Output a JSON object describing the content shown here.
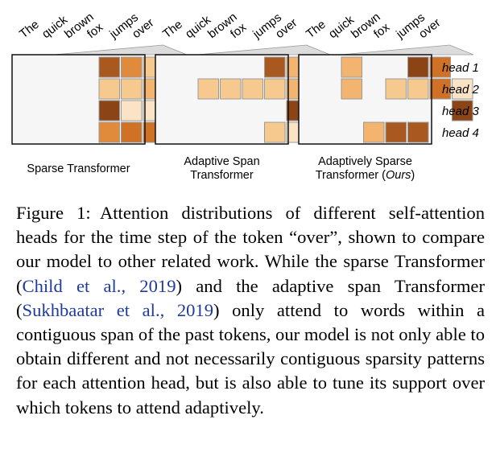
{
  "tokens": [
    "The",
    "quick",
    "brown",
    "fox",
    "jumps",
    "over"
  ],
  "heads": [
    "head 1",
    "head 2",
    "head 3",
    "head 4"
  ],
  "colors": {
    "empty": "#f6f6f6",
    "c1": "#fbe4c6",
    "c2": "#f6c98f",
    "c3": "#f2b46f",
    "c4": "#e08a3c",
    "c5": "#cf7226",
    "c6": "#a9591f",
    "c7": "#8a4416",
    "citation": "#1f3b9b"
  },
  "panels": [
    {
      "title_lines": [
        "Sparse Transformer"
      ],
      "cells": [
        [
          0,
          0,
          6,
          4,
          2,
          2
        ],
        [
          0,
          0,
          2,
          2,
          3,
          7
        ],
        [
          0,
          0,
          7,
          1,
          1,
          1
        ],
        [
          0,
          0,
          4,
          5,
          5,
          4
        ]
      ]
    },
    {
      "title_lines": [
        "Adaptive Span",
        "Transformer"
      ],
      "cells": [
        [
          0,
          0,
          0,
          6,
          3,
          1
        ],
        [
          2,
          2,
          2,
          2,
          3,
          1
        ],
        [
          0,
          0,
          0,
          0,
          7,
          1
        ],
        [
          0,
          0,
          0,
          2,
          1,
          6
        ]
      ]
    },
    {
      "title_lines": [
        "Adaptively Sparse",
        "Transformer (",
        "Ours",
        ")"
      ],
      "cells": [
        [
          3,
          0,
          0,
          7,
          5,
          0
        ],
        [
          3,
          0,
          2,
          2,
          5,
          1
        ],
        [
          0,
          0,
          0,
          0,
          0,
          7
        ],
        [
          0,
          3,
          6,
          6,
          0,
          0
        ]
      ]
    }
  ],
  "caption": {
    "label": "Figure 1:",
    "text_1": "Attention distributions of different self-attention heads for the time step of the token “over”, shown to compare our model to other related work. While the sparse Transformer (",
    "cite_1": "Child et al., 2019",
    "text_2": ") and the adaptive span Transformer (",
    "cite_2": "Sukhbaatar et al., 2019",
    "text_3": ") only attend to words within a contiguous span of the past tokens, our model is not only able to obtain different and not necessarily contiguous sparsity patterns for each attention head, but is also able to tune its support over which tokens to attend adaptively."
  }
}
